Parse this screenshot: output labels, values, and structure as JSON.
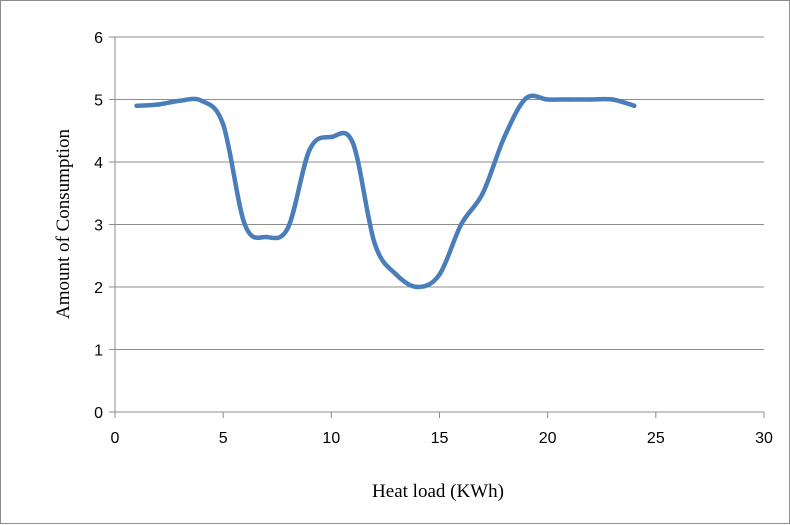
{
  "chart_data": {
    "type": "line",
    "title": "",
    "xlabel": "Heat load (KWh)",
    "ylabel": "Amount of Consumption",
    "xlim": [
      0,
      30
    ],
    "ylim": [
      0,
      6
    ],
    "x_ticks": [
      "0",
      "5",
      "10",
      "15",
      "20",
      "25",
      "30"
    ],
    "y_ticks": [
      "0",
      "1",
      "2",
      "3",
      "4",
      "5",
      "6"
    ],
    "grid": "horizontal",
    "legend": "none",
    "line_color": "#4a7ebb",
    "series": [
      {
        "x": [
          1,
          2,
          3,
          4,
          5,
          6,
          7,
          8,
          9,
          10,
          11,
          12,
          13,
          14,
          15,
          16,
          17,
          18,
          19,
          20,
          21,
          22,
          23,
          24
        ],
        "y": [
          4.9,
          4.92,
          4.98,
          4.98,
          4.6,
          3.0,
          2.8,
          2.95,
          4.2,
          4.4,
          4.3,
          2.7,
          2.2,
          2.0,
          2.2,
          3.0,
          3.5,
          4.4,
          5.02,
          5.0,
          5.0,
          5.0,
          5.0,
          4.9
        ]
      }
    ]
  }
}
